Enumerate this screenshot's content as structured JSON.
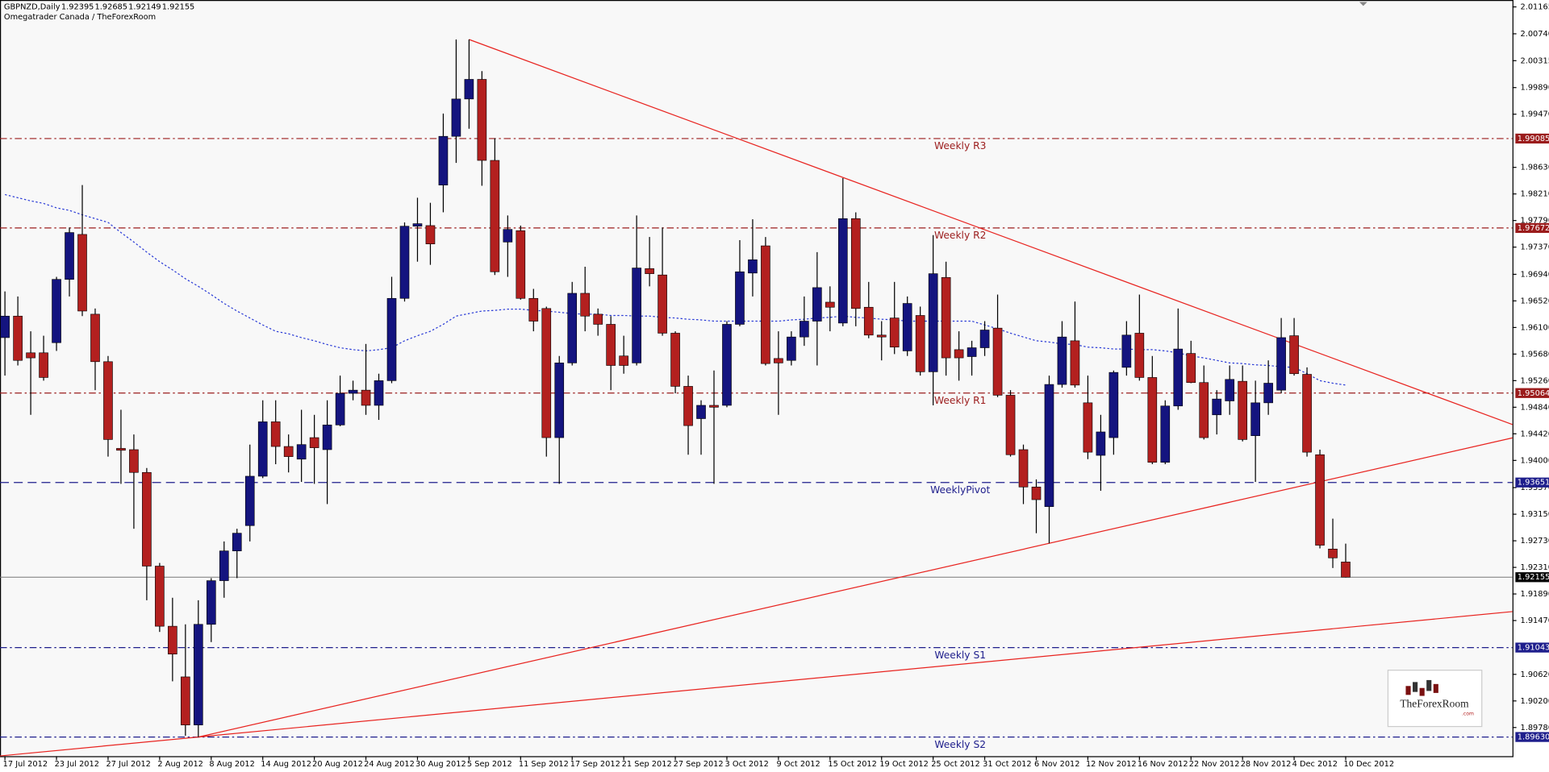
{
  "chart_data": {
    "type": "candlestick",
    "title": "GBPNZD,Daily",
    "subtitle": "Omegatrader Canada / TheForexRoom",
    "bull_color": "#14147f",
    "bear_color": "#b3201f",
    "grid": false,
    "ylim": [
      1.89327,
      2.01274
    ],
    "yticks": [
      2.01165,
      {
        "value": 2.0074,
        "label": "2.00740"
      },
      2.00315,
      {
        "value": 1.9989,
        "label": "1.99890"
      },
      {
        "value": 1.9947,
        "label": "1.99470"
      },
      {
        "value": 1.9863,
        "label": "1.98630"
      },
      {
        "value": 1.9821,
        "label": "1.98210"
      },
      {
        "value": 1.9779,
        "label": "1.97790"
      },
      {
        "value": 1.9737,
        "label": "1.97370"
      },
      {
        "value": 1.9694,
        "label": "1.96940"
      },
      {
        "value": 1.9652,
        "label": "1.96520"
      },
      {
        "value": 1.961,
        "label": "1.96100"
      },
      {
        "value": 1.9568,
        "label": "1.95680"
      },
      {
        "value": 1.9526,
        "label": "1.95260"
      },
      {
        "value": 1.9484,
        "label": "1.94840"
      },
      {
        "value": 1.9442,
        "label": "1.94420"
      },
      {
        "value": 1.94,
        "label": "1.94000"
      },
      {
        "value": 1.9357,
        "label": "1.93570"
      },
      {
        "value": 1.9315,
        "label": "1.93150"
      },
      {
        "value": 1.9273,
        "label": "1.92730"
      },
      {
        "value": 1.9231,
        "label": "1.92310"
      },
      {
        "value": 1.9189,
        "label": "1.91890"
      },
      {
        "value": 1.9147,
        "label": "1.91470"
      },
      {
        "value": 1.9062,
        "label": "1.90620"
      },
      {
        "value": 1.902,
        "label": "1.90200"
      },
      {
        "value": 1.8978,
        "label": "1.89780"
      }
    ],
    "categories": [
      "17 Jul 2012",
      null,
      null,
      null,
      "23 Jul 2012",
      null,
      null,
      null,
      "27 Jul 2012",
      null,
      null,
      null,
      "2 Aug 2012",
      null,
      null,
      null,
      "8 Aug 2012",
      null,
      null,
      null,
      "14 Aug 2012",
      null,
      null,
      null,
      "20 Aug 2012",
      null,
      null,
      null,
      "24 Aug 2012",
      null,
      null,
      null,
      "30 Aug 2012",
      null,
      null,
      null,
      "5 Sep 2012",
      null,
      null,
      null,
      "11 Sep 2012",
      null,
      null,
      null,
      "17 Sep 2012",
      null,
      null,
      null,
      "21 Sep 2012",
      null,
      null,
      null,
      "27 Sep 2012",
      null,
      null,
      null,
      "3 Oct 2012",
      null,
      null,
      null,
      "9 Oct 2012",
      null,
      null,
      null,
      "15 Oct 2012",
      null,
      null,
      null,
      "19 Oct 2012",
      null,
      null,
      null,
      "25 Oct 2012",
      null,
      null,
      null,
      "31 Oct 2012",
      null,
      null,
      null,
      "6 Nov 2012",
      null,
      null,
      null,
      "12 Nov 2012",
      null,
      null,
      null,
      "16 Nov 2012",
      null,
      null,
      null,
      "22 Nov 2012",
      null,
      null,
      null,
      "28 Nov 2012",
      null,
      null,
      null,
      "4 Dec 2012",
      null,
      null,
      null,
      "10 Dec 2012"
    ],
    "open": [
      1.9594,
      1.9628,
      1.957,
      1.957,
      1.9586,
      1.9686,
      1.9757,
      1.9631,
      1.9556,
      1.9419,
      1.9417,
      1.9381,
      1.9233,
      1.9138,
      1.9058,
      1.8982,
      1.9141,
      1.921,
      1.9257,
      1.9297,
      1.9375,
      1.9461,
      1.9422,
      1.9402,
      1.9436,
      1.9417,
      1.9456,
      1.9506,
      1.9511,
      1.9487,
      1.9526,
      1.9656,
      1.977,
      1.9771,
      1.9835,
      1.9912,
      1.9971,
      2.0002,
      1.9874,
      1.9745,
      1.9763,
      1.9656,
      1.964,
      1.9436,
      1.9554,
      1.9664,
      1.9631,
      1.9615,
      1.9565,
      1.9554,
      1.9703,
      1.9693,
      1.9601,
      1.9517,
      1.9466,
      1.9487,
      1.9487,
      1.9615,
      1.9696,
      1.9739,
      1.9561,
      1.9558,
      1.9595,
      1.962,
      1.965,
      1.9617,
      1.9782,
      1.9642,
      1.9598,
      1.9625,
      1.9573,
      1.9629,
      1.954,
      1.9689,
      1.9575,
      1.9564,
      1.9578,
      1.9609,
      1.9503,
      1.9417,
      1.9358,
      1.9327,
      1.952,
      1.9589,
      1.9491,
      1.9408,
      1.9436,
      1.9547,
      1.9601,
      1.9531,
      1.9397,
      1.9486,
      1.9569,
      1.9523,
      1.9472,
      1.9494,
      1.9525,
      1.9439,
      1.9491,
      1.9511,
      1.9597,
      1.9536,
      1.9409,
      1.926,
      1.92395
    ],
    "high": [
      1.9667,
      1.9659,
      1.9604,
      1.9597,
      1.969,
      1.9768,
      1.9835,
      1.964,
      1.9565,
      1.948,
      1.9441,
      1.9388,
      1.9238,
      1.9183,
      1.9141,
      1.9179,
      1.9214,
      1.9272,
      1.9292,
      1.9425,
      1.9495,
      1.9495,
      1.9441,
      1.948,
      1.9472,
      1.9495,
      1.9534,
      1.9526,
      1.9584,
      1.9537,
      1.969,
      1.9776,
      1.9815,
      1.9807,
      1.9948,
      2.0065,
      2.0065,
      2.0015,
      1.9909,
      1.9787,
      1.9771,
      1.9671,
      1.9643,
      1.9565,
      1.9682,
      1.9706,
      1.964,
      1.9628,
      1.9597,
      1.9787,
      1.9753,
      1.9768,
      1.9604,
      1.9534,
      1.9495,
      1.9542,
      1.962,
      1.9748,
      1.9781,
      1.9753,
      1.9604,
      1.9604,
      1.9659,
      1.9729,
      1.9675,
      1.9846,
      1.9792,
      1.9682,
      1.962,
      1.9682,
      1.9659,
      1.9643,
      1.9756,
      1.9714,
      1.9604,
      1.9589,
      1.962,
      1.9662,
      1.9511,
      1.9425,
      1.937,
      1.9534,
      1.962,
      1.9651,
      1.9534,
      1.9472,
      1.9542,
      1.962,
      1.9662,
      1.9565,
      1.9495,
      1.964,
      1.9589,
      1.955,
      1.9511,
      1.955,
      1.955,
      1.9526,
      1.9558,
      1.9625,
      1.9625,
      1.9547,
      1.9417,
      1.9308,
      1.92685
    ],
    "low": [
      1.9534,
      1.955,
      1.9472,
      1.9526,
      1.9573,
      1.9659,
      1.9628,
      1.9511,
      1.9406,
      1.9363,
      1.9292,
      1.9179,
      1.9129,
      1.9051,
      1.8965,
      1.8963,
      1.9113,
      1.9183,
      1.9214,
      1.9272,
      1.9372,
      1.9394,
      1.9381,
      1.9366,
      1.9363,
      1.9331,
      1.9454,
      1.9495,
      1.9472,
      1.9464,
      1.9522,
      1.9651,
      1.9714,
      1.9709,
      1.9792,
      1.987,
      1.9924,
      1.9834,
      1.9693,
      1.969,
      1.9654,
      1.9604,
      1.9406,
      1.9363,
      1.955,
      1.9604,
      1.9597,
      1.9511,
      1.9537,
      1.955,
      1.9675,
      1.9597,
      1.9506,
      1.9409,
      1.9409,
      1.9363,
      1.9484,
      1.9612,
      1.9659,
      1.955,
      1.9472,
      1.955,
      1.9581,
      1.955,
      1.9604,
      1.9612,
      1.9612,
      1.9593,
      1.9558,
      1.9568,
      1.9565,
      1.9534,
      1.9487,
      1.9534,
      1.9526,
      1.9534,
      1.9565,
      1.95,
      1.9406,
      1.9331,
      1.9285,
      1.9269,
      1.9515,
      1.9515,
      1.9402,
      1.9352,
      1.9409,
      1.9534,
      1.9526,
      1.9394,
      1.9394,
      1.948,
      1.9522,
      1.9433,
      1.9441,
      1.9472,
      1.943,
      1.9366,
      1.9472,
      1.9506,
      1.9534,
      1.9406,
      1.9261,
      1.923,
      1.92149
    ],
    "close": [
      1.9628,
      1.9558,
      1.9562,
      1.9531,
      1.9686,
      1.976,
      1.9636,
      1.9556,
      1.9433,
      1.9416,
      1.9381,
      1.9233,
      1.9138,
      1.9094,
      1.8982,
      1.9141,
      1.921,
      1.9257,
      1.9285,
      1.9375,
      1.9461,
      1.9422,
      1.9406,
      1.9425,
      1.942,
      1.9456,
      1.9506,
      1.9511,
      1.9487,
      1.9526,
      1.9656,
      1.977,
      1.9774,
      1.9742,
      1.9912,
      1.9971,
      2.0002,
      1.9874,
      1.9698,
      1.9765,
      1.9656,
      1.962,
      1.9436,
      1.9554,
      1.9664,
      1.9628,
      1.9615,
      1.955,
      1.955,
      1.9704,
      1.9695,
      1.9601,
      1.9517,
      1.9455,
      1.9487,
      1.9484,
      1.9615,
      1.9698,
      1.9717,
      1.9553,
      1.9554,
      1.9595,
      1.962,
      1.9673,
      1.9642,
      1.9782,
      1.964,
      1.9598,
      1.9595,
      1.9579,
      1.9648,
      1.954,
      1.9695,
      1.9562,
      1.9562,
      1.9578,
      1.9606,
      1.9503,
      1.9409,
      1.9358,
      1.9338,
      1.952,
      1.9595,
      1.9519,
      1.9413,
      1.9445,
      1.9539,
      1.9598,
      1.9531,
      1.9397,
      1.9486,
      1.9576,
      1.9523,
      1.9436,
      1.9497,
      1.9528,
      1.9433,
      1.9491,
      1.9522,
      1.9594,
      1.9537,
      1.9413,
      1.9266,
      1.9246,
      1.92155
    ],
    "indicator": {
      "color": "#2a3bd6",
      "values": [
        1.982,
        1.9815,
        1.981,
        1.9806,
        1.9799,
        1.9795,
        1.9788,
        1.9782,
        1.9776,
        1.976,
        1.9745,
        1.9729,
        1.9714,
        1.9701,
        1.9687,
        1.9675,
        1.9662,
        1.9648,
        1.9636,
        1.9625,
        1.9614,
        1.9604,
        1.96,
        1.9594,
        1.9589,
        1.9583,
        1.9578,
        1.9575,
        1.9573,
        1.9575,
        1.9578,
        1.9589,
        1.9597,
        1.9604,
        1.9615,
        1.9628,
        1.9632,
        1.9636,
        1.9637,
        1.9639,
        1.9639,
        1.9637,
        1.9636,
        1.9634,
        1.9632,
        1.9631,
        1.9631,
        1.9629,
        1.9629,
        1.9628,
        1.9628,
        1.9626,
        1.9625,
        1.9623,
        1.9622,
        1.962,
        1.962,
        1.962,
        1.962,
        1.962,
        1.962,
        1.9622,
        1.9623,
        1.9625,
        1.9626,
        1.9628,
        1.9626,
        1.9625,
        1.9623,
        1.9622,
        1.962,
        1.962,
        1.962,
        1.962,
        1.962,
        1.962,
        1.9614,
        1.9608,
        1.9601,
        1.9595,
        1.9589,
        1.9587,
        1.9584,
        1.9583,
        1.9579,
        1.9578,
        1.9576,
        1.9576,
        1.9575,
        1.9575,
        1.9573,
        1.957,
        1.9565,
        1.9562,
        1.9558,
        1.9554,
        1.9553,
        1.9551,
        1.955,
        1.9548,
        1.9547,
        1.9537,
        1.9526,
        1.9522,
        1.9519
      ]
    },
    "levels": [
      {
        "name": "Weekly R3",
        "value": 1.99085,
        "color": "#9b1c1c",
        "dash": "dashdot"
      },
      {
        "name": "Weekly R2",
        "value": 1.97672,
        "color": "#9b1c1c",
        "dash": "dashdot"
      },
      {
        "name": "Weekly R1",
        "value": 1.95064,
        "color": "#9b1c1c",
        "dash": "dashdot"
      },
      {
        "name": "WeeklyPivot",
        "value": 1.93651,
        "color": "#1e1e8c",
        "dash": "dash"
      },
      {
        "name": "Weekly S1",
        "value": 1.91043,
        "color": "#1e1e8c",
        "dash": "dashdot"
      },
      {
        "name": "Weekly S2",
        "value": 1.8963,
        "value_label": "1.89630",
        "color": "#1e1e8c",
        "dash": "dashdot"
      }
    ],
    "trendlines": [
      {
        "x": [
          36,
          100
        ],
        "y": [
          2.0065,
          1.9584
        ],
        "extend": "right",
        "color": "#e8231f"
      },
      {
        "x": [
          15,
          81
        ],
        "y": [
          1.8963,
          1.9269
        ],
        "extend": "right",
        "color": "#e8231f"
      },
      {
        "x": [
          15,
          104
        ],
        "y": [
          1.8963,
          1.9136
        ],
        "extend": "both",
        "color": "#e8231f"
      }
    ],
    "logo": {
      "name": "TheForexRoom",
      "domain": ".com"
    }
  }
}
